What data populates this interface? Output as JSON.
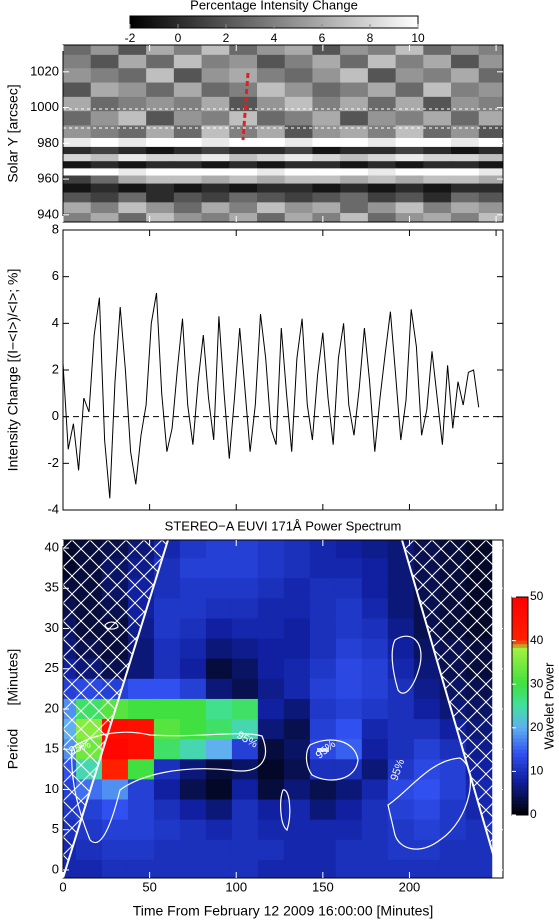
{
  "chart_data": [
    {
      "type": "heatmap",
      "colorbar_title": "Percentage Intensity Change",
      "zlim": [
        -2,
        10
      ],
      "zticks": [
        -2,
        0,
        2,
        4,
        6,
        8,
        10
      ],
      "ylabel": "Solar Y [arcsec]",
      "ylim": [
        936,
        1035
      ],
      "yticks": [
        940,
        960,
        980,
        1000,
        1020
      ],
      "xlim": [
        0,
        254
      ],
      "xticks": [
        0,
        50,
        100,
        150,
        200,
        250
      ],
      "x": [
        8,
        24,
        40,
        56,
        72,
        88,
        104,
        120,
        136,
        152,
        168,
        184,
        200,
        216,
        232,
        248
      ],
      "y": [
        1033,
        1026,
        1018,
        1010,
        1002,
        994,
        986,
        980,
        976,
        972,
        968,
        964,
        960,
        955,
        950,
        944,
        938
      ],
      "z": [
        [
          3,
          5,
          2,
          6,
          4,
          7,
          3,
          5,
          6,
          2,
          5,
          4,
          7,
          3,
          5,
          4
        ],
        [
          4,
          2,
          6,
          3,
          7,
          4,
          5,
          2,
          4,
          6,
          3,
          7,
          4,
          6,
          2,
          5
        ],
        [
          5,
          4,
          3,
          7,
          2,
          5,
          6,
          4,
          3,
          5,
          7,
          2,
          5,
          4,
          6,
          3
        ],
        [
          2,
          6,
          5,
          3,
          6,
          3,
          4,
          7,
          5,
          3,
          4,
          6,
          3,
          7,
          4,
          5
        ],
        [
          6,
          3,
          4,
          5,
          4,
          6,
          2,
          5,
          7,
          4,
          6,
          3,
          6,
          2,
          5,
          4
        ],
        [
          3,
          5,
          7,
          2,
          5,
          4,
          7,
          3,
          4,
          6,
          2,
          5,
          4,
          6,
          3,
          6
        ],
        [
          5,
          4,
          3,
          6,
          3,
          7,
          4,
          6,
          2,
          5,
          6,
          4,
          7,
          3,
          5,
          2
        ],
        [
          9,
          10,
          9,
          10,
          10,
          9,
          10,
          10,
          9,
          10,
          10,
          9,
          10,
          10,
          9,
          10
        ],
        [
          0,
          1,
          0,
          -1,
          0,
          1,
          0,
          0,
          1,
          -1,
          0,
          0,
          1,
          0,
          -1,
          0
        ],
        [
          8,
          7,
          9,
          8,
          8,
          9,
          7,
          8,
          9,
          8,
          7,
          8,
          9,
          8,
          8,
          7
        ],
        [
          -1,
          0,
          -1,
          0,
          0,
          -1,
          0,
          -1,
          0,
          0,
          -1,
          0,
          -1,
          0,
          0,
          -1
        ],
        [
          10,
          10,
          9,
          10,
          10,
          10,
          10,
          9,
          10,
          10,
          10,
          9,
          10,
          10,
          10,
          9
        ],
        [
          1,
          3,
          6,
          7,
          7,
          6,
          7,
          6,
          7,
          7,
          6,
          7,
          6,
          7,
          7,
          6
        ],
        [
          -1,
          0,
          -1,
          0,
          -1,
          0,
          -1,
          0,
          0,
          -1,
          0,
          -1,
          0,
          -1,
          0,
          0
        ],
        [
          2,
          1,
          3,
          0,
          2,
          1,
          3,
          2,
          1,
          2,
          3,
          1,
          2,
          0,
          3,
          2
        ],
        [
          6,
          4,
          7,
          5,
          3,
          6,
          4,
          7,
          5,
          6,
          3,
          5,
          7,
          4,
          6,
          5
        ],
        [
          4,
          6,
          3,
          7,
          5,
          4,
          6,
          3,
          6,
          4,
          7,
          3,
          5,
          6,
          4,
          7
        ]
      ]
    },
    {
      "type": "line",
      "ylabel": "Intensity Change [(I−<I>)/<I>; %]",
      "ylim": [
        -4,
        8
      ],
      "yticks": [
        -4,
        -2,
        0,
        2,
        4,
        6,
        8
      ],
      "xlim": [
        0,
        254
      ],
      "xticks": [
        0,
        50,
        100,
        150,
        200,
        250
      ],
      "color": "#000000",
      "hline": 0,
      "x": [
        0,
        3,
        6,
        9,
        12,
        15,
        18,
        21,
        24,
        27,
        30,
        33,
        36,
        39,
        42,
        45,
        48,
        51,
        54,
        57,
        60,
        63,
        66,
        69,
        72,
        75,
        78,
        81,
        84,
        87,
        90,
        93,
        96,
        99,
        102,
        105,
        108,
        111,
        114,
        117,
        120,
        123,
        126,
        129,
        132,
        135,
        138,
        141,
        144,
        147,
        150,
        153,
        156,
        159,
        162,
        165,
        168,
        171,
        174,
        177,
        180,
        183,
        186,
        189,
        192,
        195,
        198,
        201,
        204,
        207,
        210,
        213,
        216,
        219,
        222,
        225,
        228,
        231,
        234,
        237,
        240
      ],
      "values": [
        2.3,
        -1.4,
        -0.3,
        -2.3,
        0.8,
        0.2,
        3.5,
        5.1,
        -1.0,
        -3.5,
        1.5,
        4.7,
        2.0,
        -1.5,
        -2.9,
        -0.8,
        0.5,
        4.0,
        5.3,
        1.0,
        -1.5,
        -0.5,
        2.0,
        4.2,
        0.5,
        -1.2,
        1.5,
        3.5,
        0.8,
        -1.0,
        4.3,
        1.0,
        -1.8,
        0.8,
        3.8,
        1.2,
        -1.5,
        0.5,
        4.4,
        2.5,
        -0.5,
        -1.2,
        3.8,
        1.0,
        -1.5,
        2.5,
        4.2,
        0.5,
        -1.0,
        1.8,
        3.6,
        0.8,
        -1.2,
        2.5,
        4.0,
        0.5,
        -0.8,
        1.2,
        3.8,
        1.5,
        -1.5,
        0.8,
        2.7,
        4.5,
        1.8,
        -1.0,
        0.7,
        4.6,
        3.0,
        -0.8,
        0.3,
        2.8,
        0.8,
        -1.2,
        2.2,
        -0.5,
        1.5,
        0.5,
        1.9,
        2.0,
        0.4
      ]
    },
    {
      "type": "wavelet",
      "title": "STEREO−A EUVI 171Å Power Spectrum",
      "ylabel": "Period      [Minutes]",
      "xlabel": "Time From February 12 2009 16:00:00 [Minutes]",
      "ylim": [
        -1,
        41
      ],
      "yticks": [
        0,
        5,
        10,
        15,
        20,
        25,
        30,
        35,
        40
      ],
      "xlim": [
        0,
        254
      ],
      "xticks": [
        0,
        50,
        100,
        150,
        200
      ],
      "colorbar_title": "Wavelet Power",
      "zlim": [
        0,
        50
      ],
      "zticks": [
        0,
        10,
        20,
        30,
        40,
        50
      ],
      "annotations": [
        "95%",
        "95%",
        "95%",
        "95%"
      ],
      "x": [
        0,
        15,
        30,
        45,
        60,
        75,
        90,
        105,
        120,
        135,
        150,
        165,
        180,
        195,
        210,
        225,
        240
      ],
      "y": [
        40,
        37.5,
        35,
        32.5,
        30,
        27.5,
        25,
        22.5,
        20,
        17.5,
        15,
        12.5,
        10,
        7.5,
        5,
        2.5,
        0
      ],
      "z": [
        [
          2,
          3,
          4,
          6,
          9,
          11,
          12,
          12,
          11,
          10,
          9,
          8,
          7,
          6,
          4,
          3,
          2
        ],
        [
          2,
          3,
          5,
          7,
          10,
          12,
          12,
          12,
          11,
          10,
          9,
          9,
          8,
          6,
          4,
          3,
          2
        ],
        [
          3,
          3,
          5,
          8,
          10,
          11,
          11,
          11,
          10,
          9,
          10,
          10,
          8,
          6,
          4,
          3,
          2
        ],
        [
          4,
          3,
          4,
          8,
          11,
          11,
          10,
          10,
          9,
          9,
          10,
          11,
          9,
          6,
          4,
          3,
          2
        ],
        [
          5,
          3,
          3,
          7,
          11,
          10,
          8,
          9,
          9,
          8,
          10,
          11,
          10,
          7,
          4,
          3,
          2
        ],
        [
          6,
          4,
          3,
          6,
          10,
          9,
          6,
          7,
          8,
          8,
          10,
          12,
          11,
          8,
          5,
          4,
          3
        ],
        [
          8,
          6,
          4,
          6,
          10,
          8,
          3,
          5,
          8,
          9,
          11,
          13,
          12,
          9,
          6,
          4,
          3
        ],
        [
          12,
          13,
          12,
          14,
          14,
          12,
          6,
          4,
          7,
          9,
          12,
          13,
          12,
          10,
          7,
          5,
          4
        ],
        [
          18,
          28,
          32,
          30,
          30,
          30,
          26,
          28,
          8,
          6,
          11,
          12,
          11,
          10,
          8,
          6,
          5
        ],
        [
          20,
          36,
          46,
          45,
          32,
          30,
          28,
          24,
          6,
          4,
          12,
          14,
          9,
          10,
          10,
          8,
          6
        ],
        [
          18,
          34,
          48,
          46,
          28,
          24,
          20,
          12,
          3,
          5,
          13,
          15,
          8,
          10,
          12,
          10,
          7
        ],
        [
          14,
          24,
          40,
          30,
          10,
          6,
          3,
          5,
          2,
          4,
          10,
          10,
          6,
          11,
          13,
          12,
          8
        ],
        [
          12,
          16,
          18,
          12,
          8,
          4,
          2,
          8,
          3,
          6,
          4,
          6,
          9,
          13,
          14,
          12,
          9
        ],
        [
          11,
          12,
          14,
          12,
          10,
          8,
          6,
          10,
          8,
          9,
          6,
          8,
          10,
          12,
          13,
          11,
          9
        ],
        [
          10,
          11,
          12,
          12,
          11,
          10,
          9,
          10,
          9,
          9,
          9,
          9,
          10,
          11,
          12,
          11,
          10
        ],
        [
          9,
          10,
          11,
          11,
          10,
          10,
          10,
          10,
          10,
          9,
          9,
          10,
          10,
          11,
          11,
          10,
          10
        ],
        [
          9,
          9,
          10,
          10,
          10,
          10,
          10,
          10,
          9,
          9,
          9,
          10,
          10,
          10,
          10,
          10,
          10
        ]
      ]
    }
  ]
}
